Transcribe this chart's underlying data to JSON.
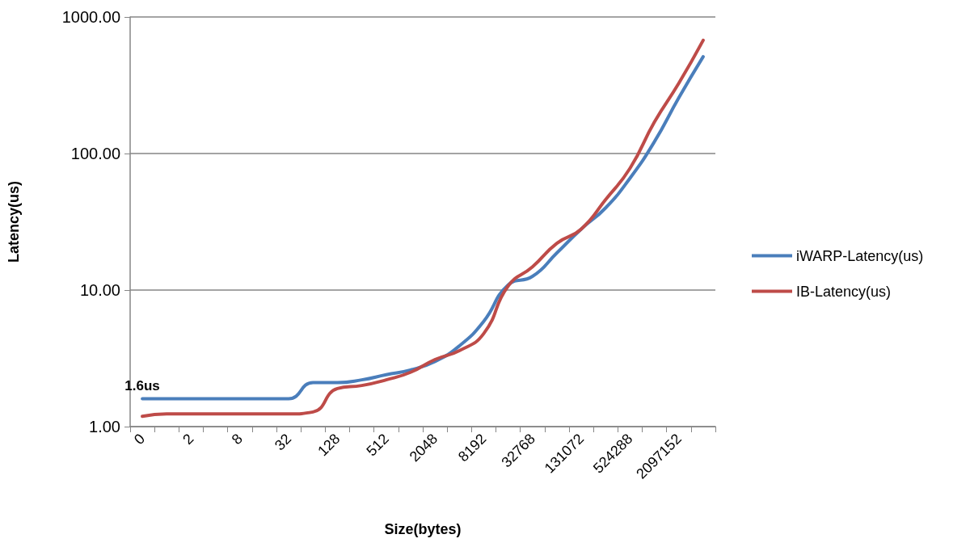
{
  "chart_data": {
    "type": "line",
    "xlabel": "Size(bytes)",
    "ylabel": "Latency(us)",
    "categories": [
      "0",
      null,
      "2",
      null,
      "8",
      null,
      "32",
      null,
      "128",
      null,
      "512",
      null,
      "2048",
      null,
      "8192",
      null,
      "32768",
      null,
      "131072",
      null,
      "524288",
      null,
      "2097152",
      null
    ],
    "series": [
      {
        "name": "iWARP-Latency(us)",
        "color": "#4a7ebb",
        "values": [
          1.6,
          1.6,
          1.6,
          1.6,
          1.6,
          1.6,
          1.6,
          2.1,
          2.1,
          2.2,
          2.4,
          2.6,
          3.0,
          3.9,
          5.9,
          10.9,
          12.6,
          18.7,
          28,
          40,
          66,
          122,
          256,
          512
        ]
      },
      {
        "name": "IB-Latency(us)",
        "color": "#be4b48",
        "values": [
          1.19,
          1.24,
          1.24,
          1.24,
          1.24,
          1.24,
          1.24,
          1.28,
          1.9,
          2.0,
          2.2,
          2.5,
          3.1,
          3.6,
          4.8,
          10.7,
          14.8,
          22,
          28,
          46,
          78,
          170,
          327,
          675
        ]
      }
    ],
    "ylim": [
      1,
      1000
    ],
    "yticks": [
      {
        "value": 1,
        "label": "1.00"
      },
      {
        "value": 10,
        "label": "10.00"
      },
      {
        "value": 100,
        "label": "100.00"
      },
      {
        "value": 1000,
        "label": "1000.00"
      }
    ],
    "log": "y",
    "grid": "y",
    "legend": "right",
    "marker": "none",
    "line_style": "solid",
    "annotations": [
      {
        "text": "1.6us",
        "x": "0",
        "y": 1.6
      }
    ]
  }
}
